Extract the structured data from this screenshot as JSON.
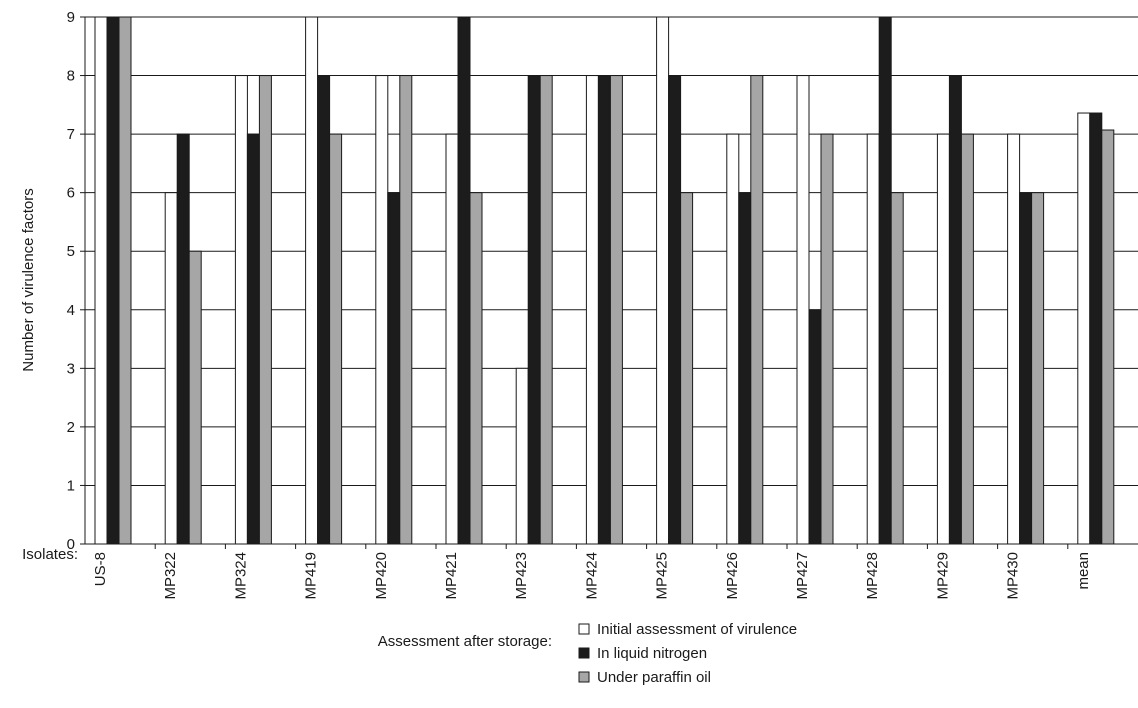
{
  "chart_data": {
    "type": "bar",
    "ylabel": "Number of virulence factors",
    "ylim": [
      0,
      9
    ],
    "yticks": [
      0,
      1,
      2,
      3,
      4,
      5,
      6,
      7,
      8,
      9
    ],
    "grid": true,
    "category_label": "Isolates:",
    "categories": [
      "US-8",
      "MP322",
      "MP324",
      "MP419",
      "MP420",
      "MP421",
      "MP423",
      "MP424",
      "MP425",
      "MP426",
      "MP427",
      "MP428",
      "MP429",
      "MP430",
      "mean"
    ],
    "series": [
      {
        "name": "Initial assessment of virulence",
        "color": "#ffffff",
        "values": [
          9,
          6,
          8,
          9,
          8,
          7,
          3,
          8,
          9,
          7,
          8,
          7,
          7,
          7,
          7.36
        ]
      },
      {
        "name": "In liquid nitrogen",
        "color": "#1c1c1c",
        "values": [
          9,
          7,
          7,
          8,
          6,
          9,
          8,
          8,
          8,
          6,
          4,
          9,
          8,
          6,
          7.36
        ]
      },
      {
        "name": "Under paraffin oil",
        "color": "#a6a6a6",
        "values": [
          9,
          5,
          8,
          7,
          8,
          6,
          8,
          8,
          6,
          8,
          7,
          6,
          7,
          6,
          7.07
        ]
      }
    ],
    "legend": {
      "position": "bottom-center",
      "group_label": "Assessment after storage:"
    }
  }
}
